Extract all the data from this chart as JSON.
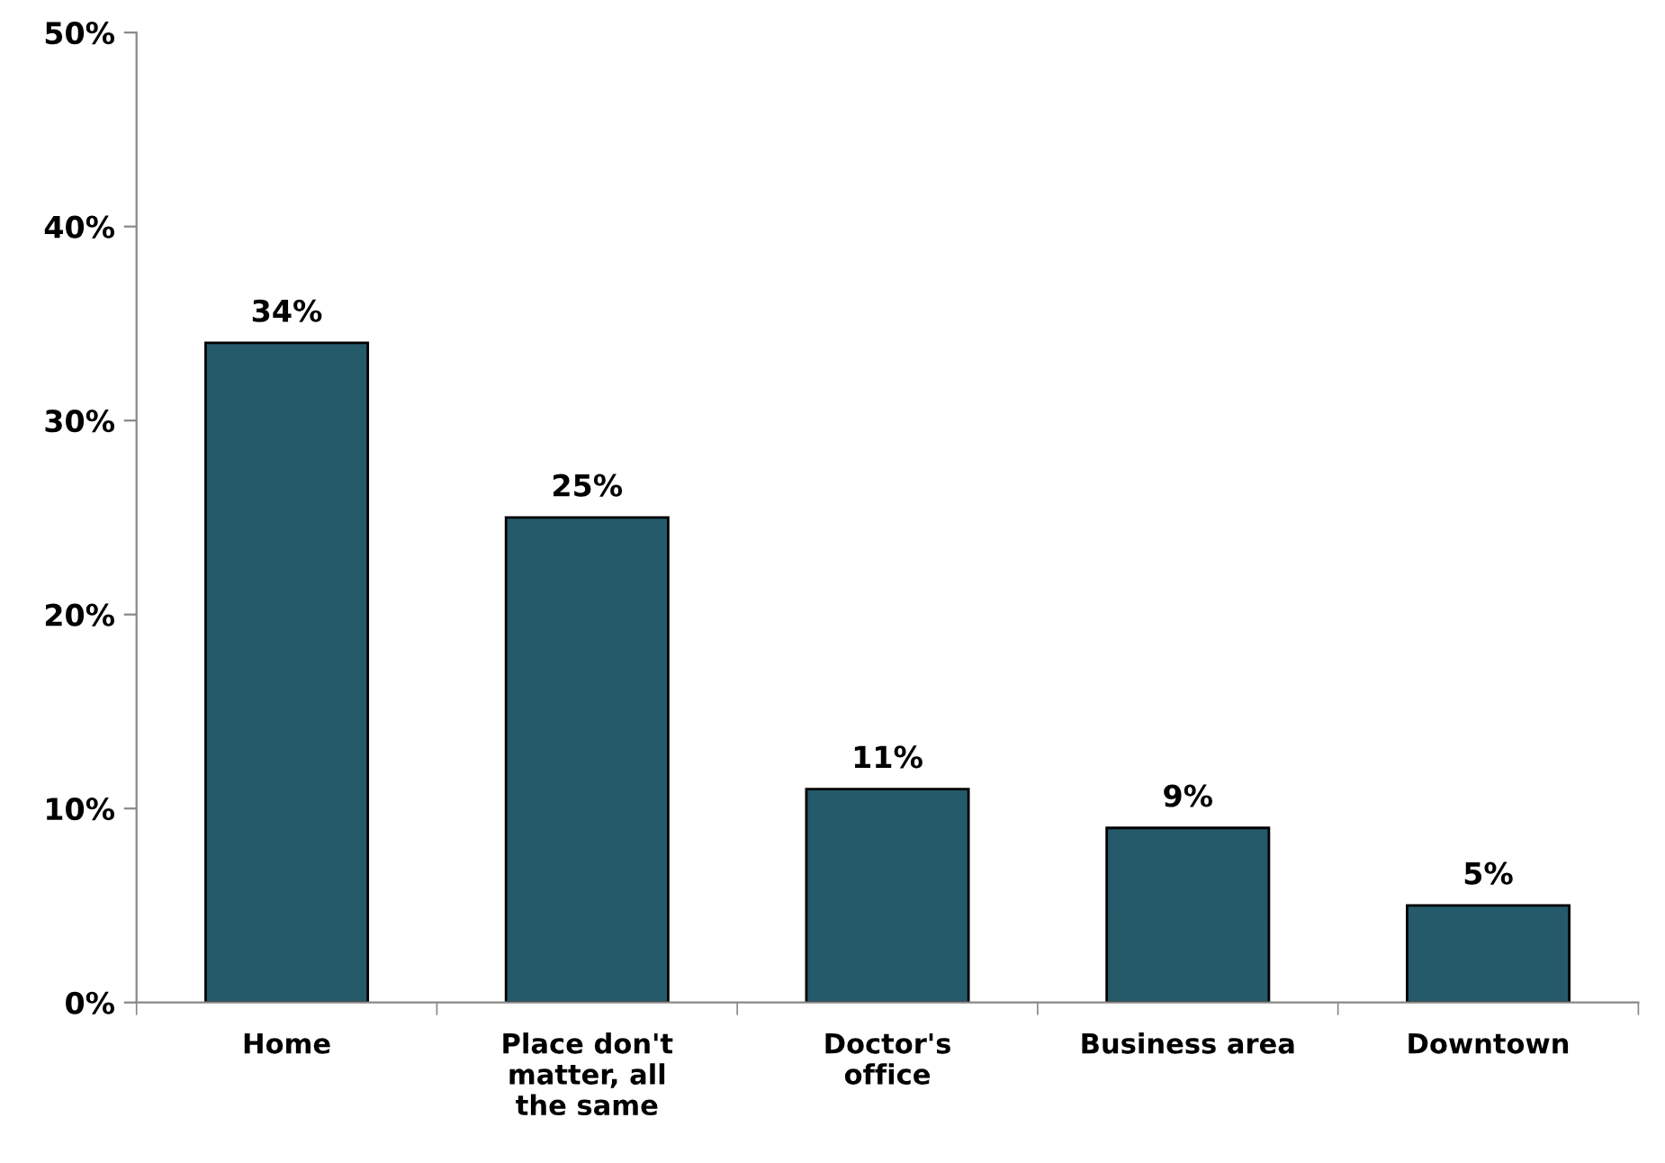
{
  "chart_data": {
    "type": "bar",
    "categories": [
      "Home",
      "Place don't matter, all the same",
      "Doctor's office",
      "Business area",
      "Downtown"
    ],
    "values": [
      34,
      25,
      11,
      9,
      5
    ],
    "value_labels": [
      "34%",
      "25%",
      "11%",
      "9%",
      "5%"
    ],
    "color": "#245a69",
    "ylim": [
      0,
      50
    ],
    "yticks": [
      {
        "value": 0,
        "label": "0%"
      },
      {
        "value": 10,
        "label": "10%"
      },
      {
        "value": 20,
        "label": "20%"
      },
      {
        "value": 30,
        "label": "30%"
      },
      {
        "value": 40,
        "label": "40%"
      },
      {
        "value": 50,
        "label": "50%"
      }
    ],
    "grid": false,
    "legend": false
  }
}
